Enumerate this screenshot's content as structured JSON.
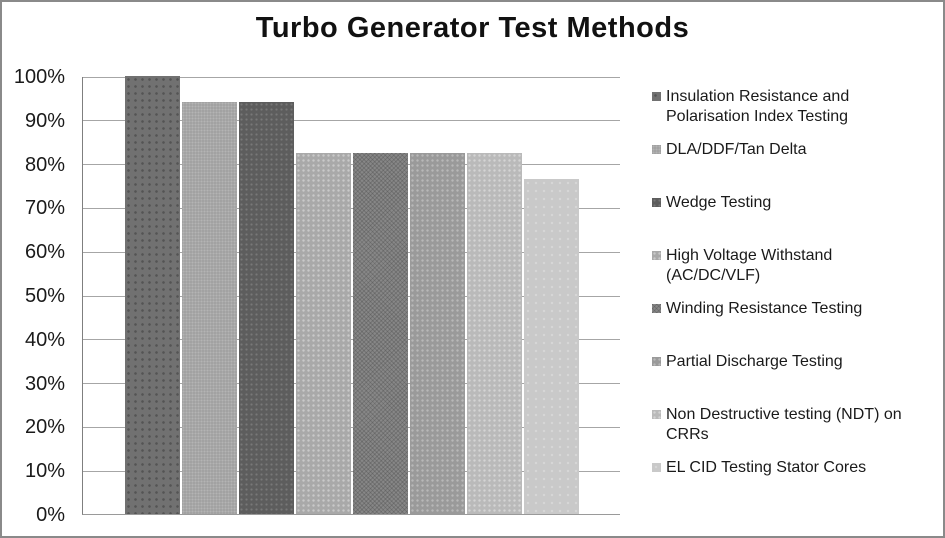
{
  "chart_data": {
    "type": "bar",
    "title": "Turbo Generator Test Methods",
    "xlabel": "",
    "ylabel": "",
    "ylim": [
      0,
      100
    ],
    "yticks": [
      "0%",
      "10%",
      "20%",
      "30%",
      "40%",
      "50%",
      "60%",
      "70%",
      "80%",
      "90%",
      "100%"
    ],
    "grid": true,
    "legend_position": "right",
    "series": [
      {
        "name": "Insulation Resistance and Polarisation Index Testing",
        "value": 100,
        "color": "#717171"
      },
      {
        "name": "DLA/DDF/Tan Delta",
        "value": 94.1,
        "color": "#a1a1a1"
      },
      {
        "name": "Wedge Testing",
        "value": 94.1,
        "color": "#5d5d5d"
      },
      {
        "name": "High Voltage Withstand (AC/DC/VLF)",
        "value": 82.4,
        "color": "#a9a9a9"
      },
      {
        "name": "Winding Resistance Testing",
        "value": 82.4,
        "color": "#878787"
      },
      {
        "name": "Partial Discharge Testing",
        "value": 82.4,
        "color": "#9a9a9a"
      },
      {
        "name": "Non Destructive testing (NDT) on CRRs",
        "value": 82.4,
        "color": "#bababa"
      },
      {
        "name": "EL CID Testing Stator Cores",
        "value": 76.5,
        "color": "#c9c9c9"
      }
    ]
  }
}
